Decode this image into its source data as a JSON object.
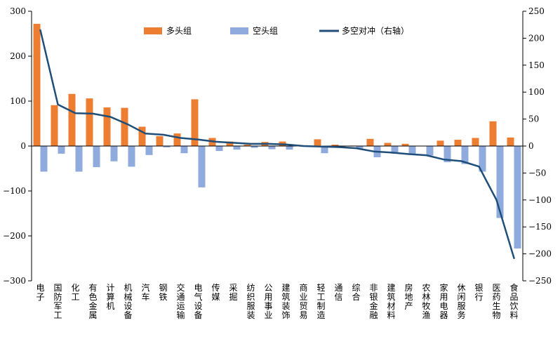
{
  "chart_data": {
    "type": "bar",
    "categories": [
      "电子",
      "国防军工",
      "化工",
      "有色金属",
      "计算机",
      "机械设备",
      "汽车",
      "钢铁",
      "交通运输",
      "电气设备",
      "传媒",
      "采掘",
      "纺织服装",
      "公用事业",
      "建筑装饰",
      "商业贸易",
      "轻工制造",
      "通信",
      "综合",
      "非银金融",
      "建筑材料",
      "房地产",
      "农林牧渔",
      "家用电器",
      "休闲服务",
      "银行",
      "医药生物",
      "食品饮料"
    ],
    "series": [
      {
        "name": "多头组",
        "kind": "bar",
        "axis": "left",
        "color": "#ED7D31",
        "values": [
          272,
          91,
          116,
          106,
          86,
          85,
          43,
          22,
          28,
          104,
          18,
          10,
          3,
          9,
          10,
          2,
          15,
          3,
          1,
          16,
          7,
          5,
          0,
          12,
          14,
          18,
          55,
          19
        ]
      },
      {
        "name": "空头组",
        "kind": "bar",
        "axis": "left",
        "color": "#8FAADC",
        "values": [
          -57,
          -17,
          -57,
          -47,
          -34,
          -46,
          -20,
          -3,
          -16,
          -92,
          -11,
          -8,
          -4,
          -7,
          -8,
          -1,
          -16,
          -2,
          -5,
          -25,
          -17,
          -19,
          -21,
          -36,
          -40,
          -57,
          -160,
          -228
        ]
      },
      {
        "name": "多空对冲（右轴）",
        "kind": "line",
        "axis": "right",
        "color": "#1F4E79",
        "values": [
          215,
          77,
          61,
          60,
          54,
          40,
          23,
          21,
          15,
          12,
          8,
          6,
          4,
          4,
          3,
          0,
          -1,
          -2,
          -4,
          -10,
          -12,
          -15,
          -17,
          -25,
          -28,
          -38,
          -100,
          -208
        ]
      }
    ],
    "y_left": {
      "min": -300,
      "max": 300,
      "step": 100
    },
    "y_right": {
      "min": -250,
      "max": 250,
      "step": 50
    },
    "legend_position": "top",
    "grid": false
  }
}
